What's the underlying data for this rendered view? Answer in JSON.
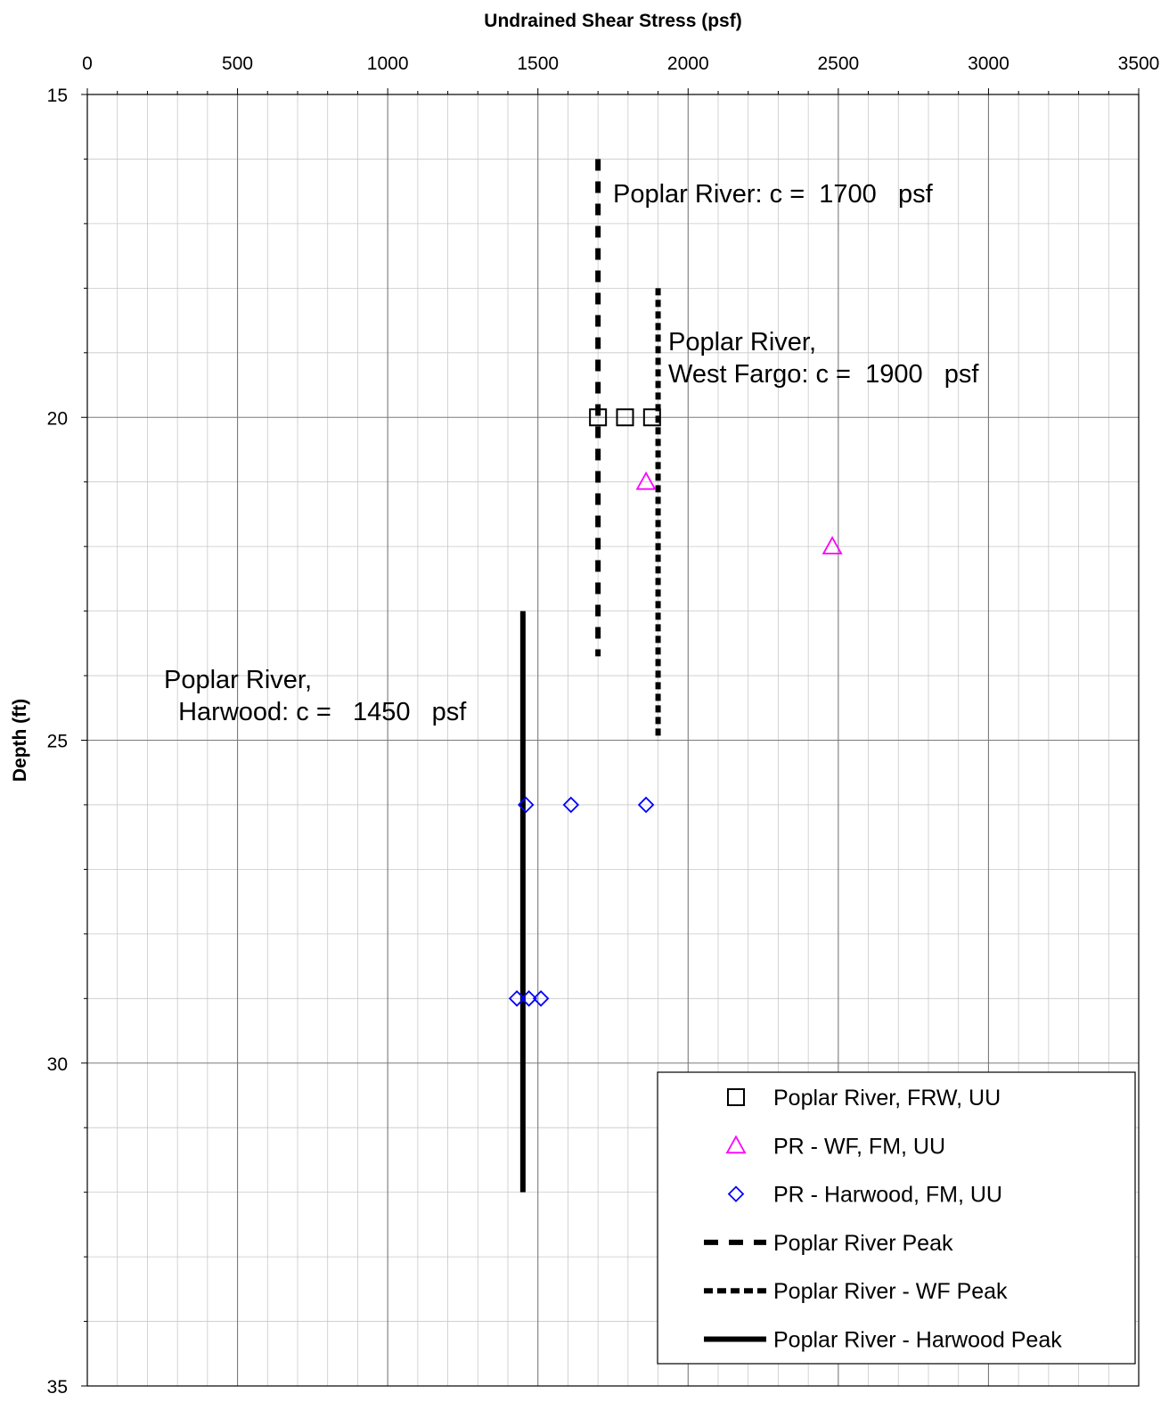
{
  "chart_data": {
    "type": "scatter",
    "xlabel": "Undrained Shear Stress (psf)",
    "ylabel": "Depth (ft)",
    "xlim": [
      0,
      3500
    ],
    "ylim": [
      15,
      35
    ],
    "y_inverted": true,
    "x_axis_position": "top",
    "x_ticks": [
      "0",
      "500",
      "1000",
      "1500",
      "2000",
      "2500",
      "3000",
      "3500"
    ],
    "y_ticks": [
      "15",
      "20",
      "25",
      "30",
      "35"
    ],
    "grid": true,
    "legend_position": "bottom-right",
    "series": [
      {
        "name": "Poplar River, FRW, UU",
        "kind": "marker",
        "marker": "square",
        "color": "#000000",
        "points": [
          [
            1700,
            20
          ],
          [
            1790,
            20
          ],
          [
            1880,
            20
          ]
        ]
      },
      {
        "name": "PR - WF, FM, UU",
        "kind": "marker",
        "marker": "triangle",
        "color": "#ff00ff",
        "points": [
          [
            1860,
            21
          ],
          [
            2480,
            22
          ]
        ]
      },
      {
        "name": "PR - Harwood, FM, UU",
        "kind": "marker",
        "marker": "diamond",
        "color": "#0000ff",
        "points": [
          [
            1460,
            26
          ],
          [
            1610,
            26
          ],
          [
            1860,
            26
          ],
          [
            1430,
            29
          ],
          [
            1470,
            29
          ],
          [
            1510,
            29
          ]
        ]
      },
      {
        "name": "Poplar River Peak",
        "kind": "line",
        "dash": "long",
        "color": "#000000",
        "points": [
          [
            1700,
            16
          ],
          [
            1700,
            23.7
          ]
        ]
      },
      {
        "name": "Poplar River - WF Peak",
        "kind": "line",
        "dash": "short",
        "color": "#000000",
        "points": [
          [
            1900,
            18
          ],
          [
            1900,
            25
          ]
        ]
      },
      {
        "name": "Poplar River - Harwood Peak",
        "kind": "line",
        "dash": "solid",
        "color": "#000000",
        "points": [
          [
            1450,
            23
          ],
          [
            1450,
            32
          ]
        ]
      }
    ],
    "annotations": [
      {
        "lines": [
          "Poplar River: c =  1700   psf"
        ]
      },
      {
        "lines": [
          "Poplar River,",
          "West Fargo: c =  1900   psf"
        ]
      },
      {
        "lines": [
          "Poplar River,",
          "  Harwood: c =   1450   psf"
        ]
      }
    ]
  }
}
